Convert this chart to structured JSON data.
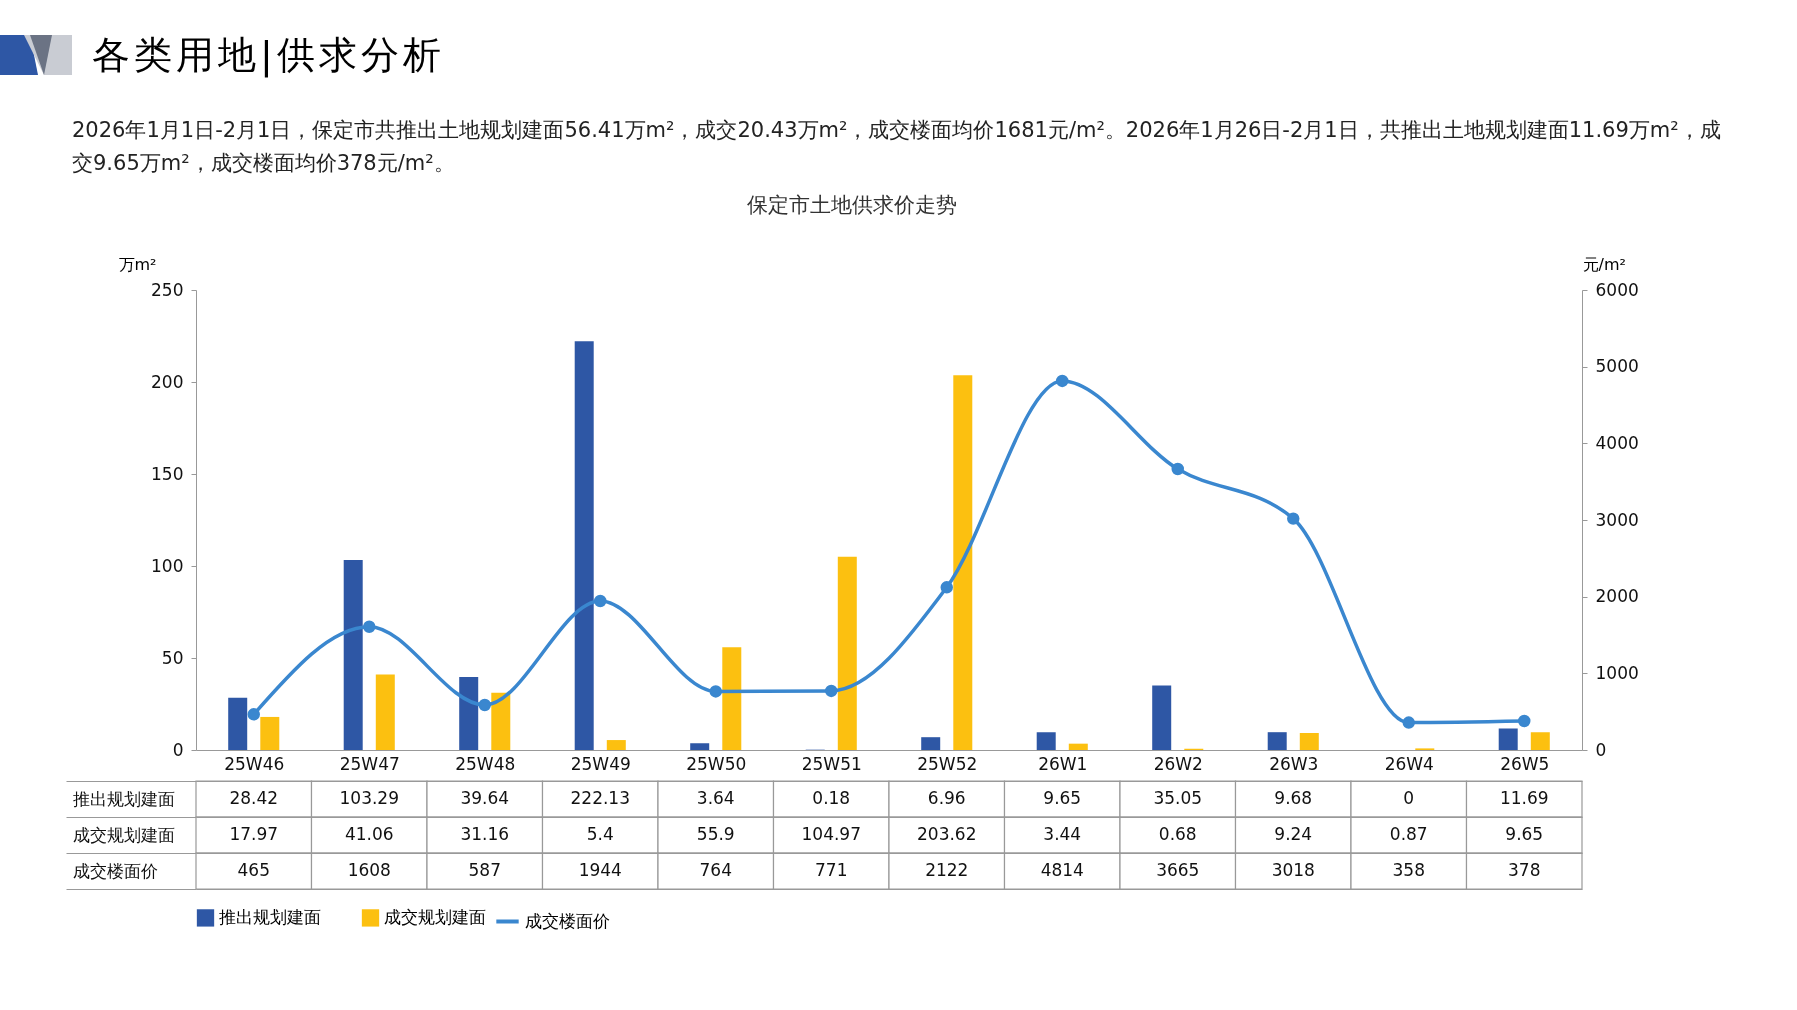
{
  "chart_data": {
    "type": "bar",
    "title": "保定市土地供求价走势",
    "subtitle": "2026年1月1日-2月1日，保定市共推出土地规划建面56.41万m²，成交20.43万m²，成交楼面均价1681元/m²。2026年1月26日-2月1日，共推出土地规划建面11.69万m²，成交9.65万m²，成交楼面均价378元/m²。",
    "annotations": [
      "各类用地|供求分析"
    ],
    "ylabel": "万m²",
    "y2label": "元/m²",
    "categories": [
      "25W46",
      "25W47",
      "25W48",
      "25W49",
      "25W50",
      "25W51",
      "25W52",
      "26W1",
      "26W2",
      "26W3",
      "26W4",
      "26W5"
    ],
    "series": [
      {
        "name": "推出规划建面",
        "color": "#2e57a5",
        "values": [
          28.42,
          103.29,
          39.64,
          222.13,
          3.64,
          0.18,
          6.96,
          9.65,
          35.05,
          9.68,
          0,
          11.69
        ]
      },
      {
        "name": "成交规划建面",
        "color": "#fcc010",
        "values": [
          17.97,
          41.06,
          31.16,
          5.4,
          55.9,
          104.97,
          203.62,
          3.44,
          0.68,
          9.24,
          0.87,
          9.65
        ]
      },
      {
        "name": "成交楼面价",
        "type": "line",
        "axis": "y2",
        "color": "#3a87cf",
        "values": [
          465,
          1608,
          587,
          1944,
          764,
          771,
          2122,
          4814,
          3665,
          3018,
          358,
          378
        ]
      }
    ],
    "ylim": [
      0,
      250
    ],
    "yticks": [
      0,
      50,
      100,
      150,
      200,
      250
    ],
    "y2lim": [
      0,
      6000
    ],
    "y2ticks": [
      0,
      1000,
      2000,
      3000,
      4000,
      5000,
      6000
    ],
    "grid": false,
    "legend": "bottom",
    "marker": "circle",
    "data_labels": true
  }
}
